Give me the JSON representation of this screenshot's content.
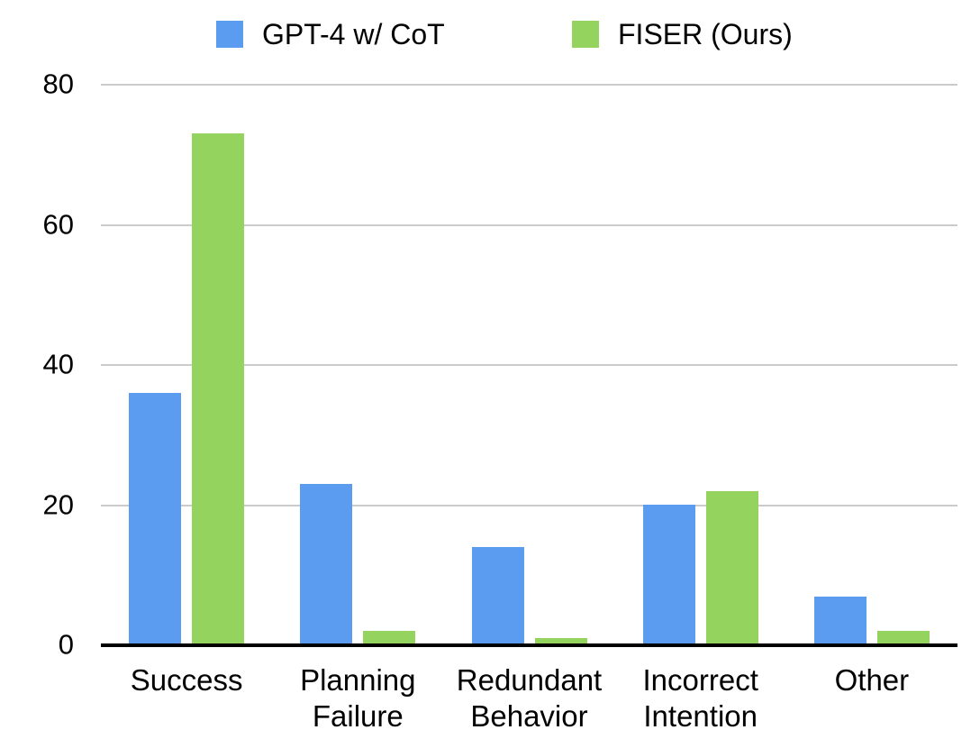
{
  "legend": {
    "items": [
      {
        "label": "GPT-4 w/ CoT",
        "color": "#5B9BF0"
      },
      {
        "label": "FISER (Ours)",
        "color": "#95D35F"
      }
    ]
  },
  "axes": {
    "y_tick_labels": [
      "0",
      "20",
      "40",
      "60",
      "80"
    ]
  },
  "chart_data": {
    "type": "bar",
    "title": "",
    "xlabel": "",
    "ylabel": "",
    "categories": [
      "Success",
      "Planning\nFailure",
      "Redundant\nBehavior",
      "Incorrect\nIntention",
      "Other"
    ],
    "series": [
      {
        "name": "GPT-4 w/ CoT",
        "color": "#5B9BF0",
        "values": [
          36,
          23,
          14,
          20,
          7
        ]
      },
      {
        "name": "FISER (Ours)",
        "color": "#95D35F",
        "values": [
          73,
          2,
          1,
          22,
          2
        ]
      }
    ],
    "ylim": [
      0,
      80
    ],
    "yticks": [
      0,
      20,
      40,
      60,
      80
    ],
    "grid": true,
    "legend_position": "top",
    "colors": {
      "gridline": "#CBCBCB",
      "axis_line": "#000000",
      "background": "#FFFFFF",
      "text": "#000000"
    }
  }
}
